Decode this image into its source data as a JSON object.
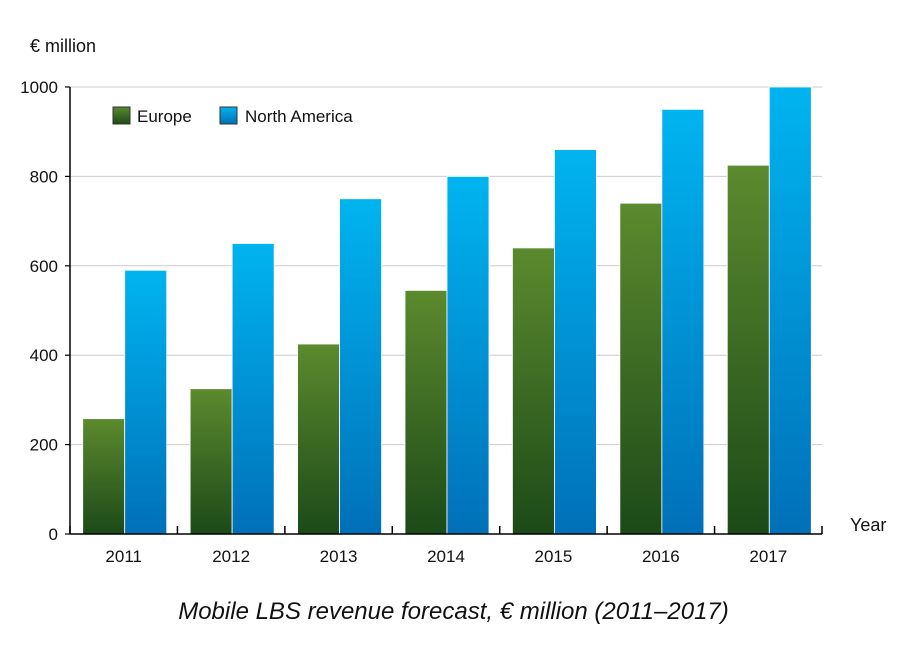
{
  "chart_data": {
    "type": "bar",
    "caption": "Mobile LBS revenue forecast, € million (2011–2017)",
    "ylabel": "€ million",
    "xlabel": "Year",
    "categories": [
      "2011",
      "2012",
      "2013",
      "2014",
      "2015",
      "2016",
      "2017"
    ],
    "series": [
      {
        "name": "Europe",
        "values": [
          258,
          325,
          425,
          545,
          640,
          740,
          825
        ]
      },
      {
        "name": "North America",
        "values": [
          590,
          650,
          750,
          800,
          860,
          950,
          1000
        ]
      }
    ],
    "ylim": [
      0,
      1000
    ],
    "yticks": [
      "0",
      "200",
      "400",
      "600",
      "800",
      "1000"
    ],
    "grid": true,
    "legend_position": "top-left",
    "colors": {
      "Europe": {
        "top": "#5c8a2e",
        "bottom": "#1c4a18"
      },
      "North America": {
        "top": "#00b4f0",
        "bottom": "#0070b8"
      },
      "grid": "#cccccc",
      "axis": "#000000"
    }
  }
}
